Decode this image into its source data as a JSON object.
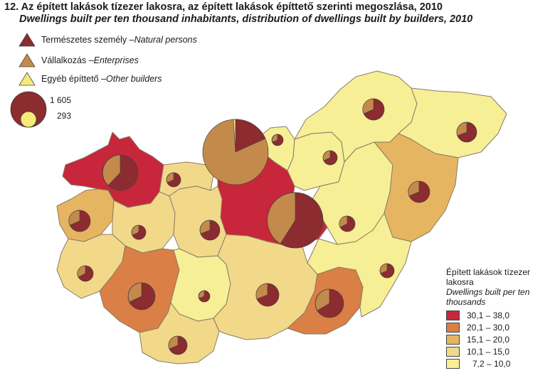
{
  "title": "12. Az épített lakások tízezer lakosra, az épített lakások építtető szerinti megoszlása, 2010",
  "subtitle": "Dwellings built per ten thousand inhabitants, distribution of dwellings built by builders, 2010",
  "builders_legend": [
    {
      "hu": "Természetes személy – ",
      "en": "Natural persons",
      "color": "#8c2b30"
    },
    {
      "hu": "Vállalkozás – ",
      "en": "Enterprises",
      "color": "#c48a4c"
    },
    {
      "hu": "Egyéb építtető – ",
      "en": "Other builders",
      "color": "#f6ea78"
    }
  ],
  "size_legend": {
    "large_value": "1 605",
    "small_value": "293"
  },
  "class_legend": {
    "title_hu": "Épített lakások tízezer lakosra",
    "title_en": "Dwellings built per ten thousands",
    "classes": [
      {
        "label": "30,1 – 38,0",
        "color": "#c8263a"
      },
      {
        "label": "20,1 – 30,0",
        "color": "#da7f45"
      },
      {
        "label": "15,1 – 20,0",
        "color": "#e6b562"
      },
      {
        "label": "10,1 – 15,0",
        "color": "#f2d98a"
      },
      {
        "label": "7,2 – 10,0",
        "color": "#f7ef95"
      }
    ]
  },
  "colors": {
    "border": "#8a7a66",
    "background": "#ffffff"
  }
}
